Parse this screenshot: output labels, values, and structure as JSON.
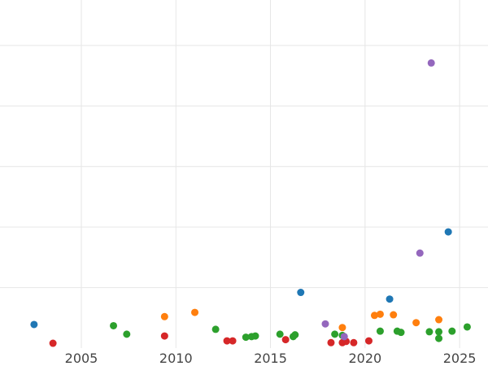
{
  "chart_data": {
    "type": "scatter",
    "title": "",
    "xlabel": "",
    "ylabel": "",
    "xlim": [
      2000.7,
      2026.5
    ],
    "ylim": [
      -0.25,
      5.5
    ],
    "grid": true,
    "legend": "none",
    "x_ticks": [
      {
        "value": 2005,
        "label": "2005"
      },
      {
        "value": 2010,
        "label": "2010"
      },
      {
        "value": 2015,
        "label": "2015"
      },
      {
        "value": 2020,
        "label": "2020"
      },
      {
        "value": 2025,
        "label": "2025"
      }
    ],
    "y_gridlines": [
      0.75,
      1.75,
      2.75,
      3.75,
      4.75
    ],
    "series": [
      {
        "color": "#1f77b4",
        "points": [
          {
            "x": 2002.5,
            "y": 0.14
          },
          {
            "x": 2016.6,
            "y": 0.67
          },
          {
            "x": 2021.3,
            "y": 0.56
          },
          {
            "x": 2024.4,
            "y": 1.67
          }
        ]
      },
      {
        "color": "#ff7f0e",
        "points": [
          {
            "x": 2009.4,
            "y": 0.27
          },
          {
            "x": 2011.0,
            "y": 0.34
          },
          {
            "x": 2018.8,
            "y": 0.09
          },
          {
            "x": 2020.5,
            "y": 0.29
          },
          {
            "x": 2020.8,
            "y": 0.31
          },
          {
            "x": 2021.5,
            "y": 0.3
          },
          {
            "x": 2022.7,
            "y": 0.17
          },
          {
            "x": 2023.9,
            "y": 0.22
          }
        ]
      },
      {
        "color": "#2ca02c",
        "points": [
          {
            "x": 2006.7,
            "y": 0.12
          },
          {
            "x": 2007.4,
            "y": -0.02
          },
          {
            "x": 2012.1,
            "y": 0.06
          },
          {
            "x": 2013.7,
            "y": -0.07
          },
          {
            "x": 2014.0,
            "y": -0.06
          },
          {
            "x": 2014.2,
            "y": -0.05
          },
          {
            "x": 2015.5,
            "y": -0.02
          },
          {
            "x": 2016.2,
            "y": -0.06
          },
          {
            "x": 2016.3,
            "y": -0.03
          },
          {
            "x": 2018.4,
            "y": -0.02
          },
          {
            "x": 2018.8,
            "y": -0.04
          },
          {
            "x": 2020.8,
            "y": 0.03
          },
          {
            "x": 2021.7,
            "y": 0.03
          },
          {
            "x": 2021.9,
            "y": 0.01
          },
          {
            "x": 2023.4,
            "y": 0.02
          },
          {
            "x": 2023.9,
            "y": 0.02
          },
          {
            "x": 2023.9,
            "y": -0.09
          },
          {
            "x": 2024.6,
            "y": 0.03
          },
          {
            "x": 2025.4,
            "y": 0.1
          }
        ]
      },
      {
        "color": "#d62728",
        "points": [
          {
            "x": 2003.5,
            "y": -0.17
          },
          {
            "x": 2009.4,
            "y": -0.05
          },
          {
            "x": 2012.7,
            "y": -0.13
          },
          {
            "x": 2013.0,
            "y": -0.13
          },
          {
            "x": 2015.8,
            "y": -0.11
          },
          {
            "x": 2018.2,
            "y": -0.16
          },
          {
            "x": 2018.8,
            "y": -0.16
          },
          {
            "x": 2019.0,
            "y": -0.14
          },
          {
            "x": 2019.4,
            "y": -0.16
          },
          {
            "x": 2020.2,
            "y": -0.13
          }
        ]
      },
      {
        "color": "#9467bd",
        "points": [
          {
            "x": 2017.9,
            "y": 0.15
          },
          {
            "x": 2018.9,
            "y": -0.06
          },
          {
            "x": 2022.9,
            "y": 1.32
          },
          {
            "x": 2023.5,
            "y": 4.46
          }
        ]
      }
    ]
  }
}
